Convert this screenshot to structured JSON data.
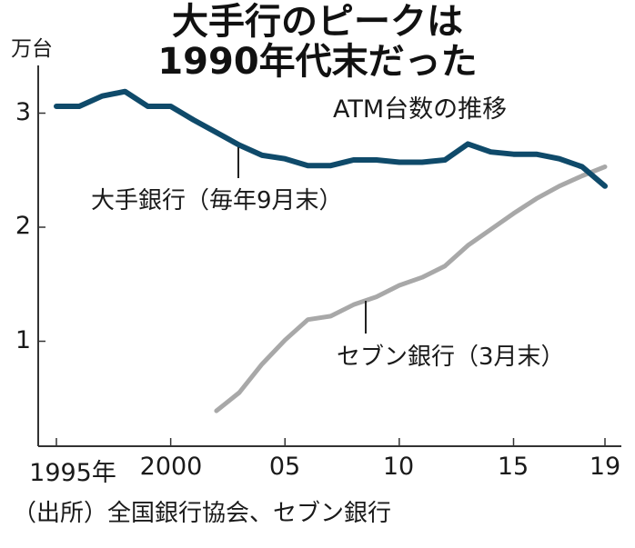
{
  "header": {
    "title_line1": "大手行のピークは",
    "title_line2": "1990年代末だった",
    "subtitle": "ATM台数の推移",
    "unit": "万台"
  },
  "axes": {
    "y_ticks": [
      "3",
      "2",
      "1"
    ],
    "x_ticks": [
      "1995年",
      "2000",
      "05",
      "10",
      "15",
      "19"
    ]
  },
  "labels": {
    "big_banks": "大手銀行（毎年9月末）",
    "seven_bank": "セブン銀行（3月末）"
  },
  "footer": {
    "source": "（出所）全国銀行協会、セブン銀行"
  },
  "colors": {
    "big_banks": "#0f4a6a",
    "seven_bank": "#a8a8a8",
    "axis": "#333333"
  },
  "chart_data": {
    "type": "line",
    "title": "大手行のピークは1990年代末だった",
    "subtitle": "ATM台数の推移",
    "xlabel": "",
    "ylabel": "万台",
    "ylim": [
      0.08,
      3.4
    ],
    "xlim": [
      1994.2,
      2019.5
    ],
    "x_tick_labels": [
      "1995年",
      "2000",
      "05",
      "10",
      "15",
      "19"
    ],
    "y_tick_labels": [
      "1",
      "2",
      "3"
    ],
    "grid": false,
    "legend_position": "inline annotations",
    "series": [
      {
        "name": "大手銀行（毎年9月末）",
        "x": [
          1995,
          1996,
          1997,
          1998,
          1999,
          2000,
          2001,
          2002,
          2003,
          2004,
          2005,
          2006,
          2007,
          2008,
          2009,
          2010,
          2011,
          2012,
          2013,
          2014,
          2015,
          2016,
          2017,
          2018,
          2019
        ],
        "values": [
          3.06,
          3.06,
          3.15,
          3.19,
          3.06,
          3.06,
          2.94,
          2.83,
          2.72,
          2.63,
          2.6,
          2.54,
          2.54,
          2.59,
          2.59,
          2.57,
          2.57,
          2.59,
          2.73,
          2.66,
          2.64,
          2.64,
          2.6,
          2.53,
          2.36
        ]
      },
      {
        "name": "セブン銀行（3月末）",
        "x": [
          2002,
          2003,
          2004,
          2005,
          2006,
          2007,
          2008,
          2009,
          2010,
          2011,
          2012,
          2013,
          2014,
          2015,
          2016,
          2017,
          2018,
          2019
        ],
        "values": [
          0.39,
          0.55,
          0.8,
          1.01,
          1.19,
          1.22,
          1.32,
          1.39,
          1.49,
          1.56,
          1.66,
          1.84,
          1.98,
          2.12,
          2.25,
          2.36,
          2.45,
          2.53
        ]
      }
    ],
    "annotations": [
      "大手銀行（毎年9月末）",
      "セブン銀行（3月末）"
    ],
    "source": "（出所）全国銀行協会、セブン銀行"
  }
}
